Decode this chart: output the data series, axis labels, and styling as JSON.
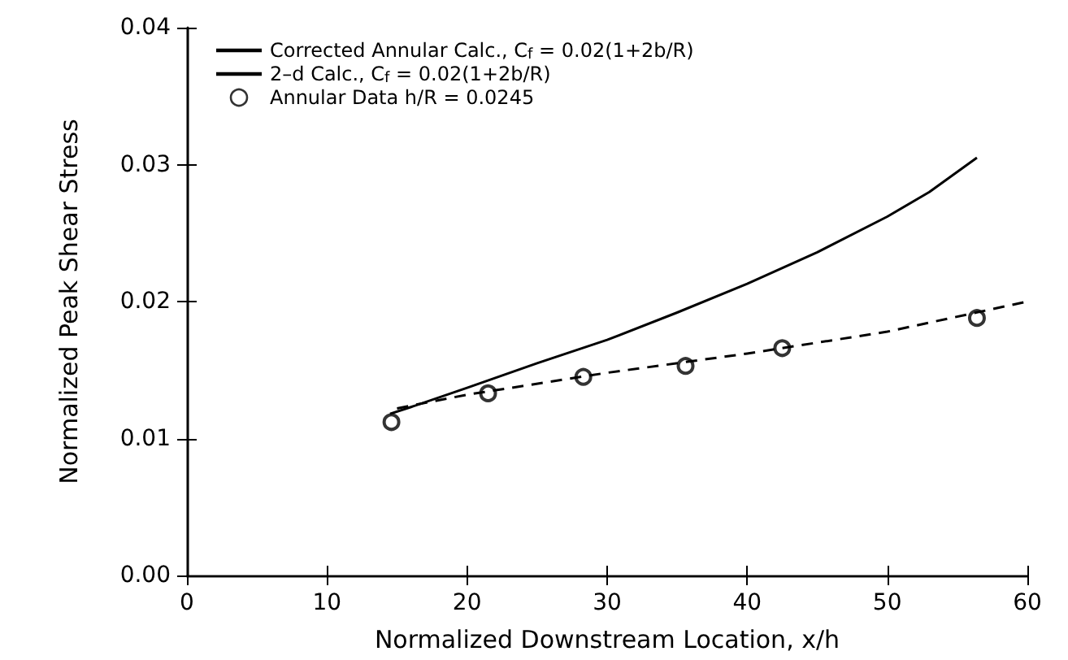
{
  "chart_data": {
    "type": "line",
    "xlabel": "Normalized Downstream Location, x/h",
    "ylabel": "Normalized Peak Shear Stress",
    "xlim": [
      0,
      60
    ],
    "xticks": [
      0,
      10,
      20,
      30,
      40,
      50,
      60
    ],
    "ylim": [
      0,
      0.04
    ],
    "yticks": [
      {
        "value": 0,
        "label": "0.00"
      },
      0.01,
      0.02,
      0.03,
      0.04
    ],
    "legend": "top left",
    "grid": false,
    "series": [
      {
        "name": "Corrected Annular Calc., C$_{f}$ = 0.02(1+2b/R)",
        "type": "line",
        "line_style": "solid",
        "color": "#000000",
        "x": [
          14.5,
          16,
          20,
          25,
          30,
          35,
          40,
          45,
          50,
          53,
          56.4
        ],
        "values": [
          0.0118,
          0.0123,
          0.0137,
          0.0155,
          0.0172,
          0.0192,
          0.0213,
          0.0236,
          0.0262,
          0.028,
          0.0305
        ]
      },
      {
        "name": "2–d Calc., C$_{f}$ = 0.02(1+2b/R)",
        "type": "line",
        "line_style": "dashed",
        "color": "#000000",
        "x": [
          15,
          20,
          30,
          40,
          50,
          60
        ],
        "values": [
          0.0122,
          0.0132,
          0.0148,
          0.0162,
          0.0178,
          0.02
        ]
      },
      {
        "name": "Annular Data h/R = 0.0245",
        "type": "scatter",
        "marker": "circle",
        "color": "#000000",
        "x": [
          14.6,
          21.5,
          28.3,
          35.6,
          42.5,
          56.4
        ],
        "values": [
          0.0112,
          0.0133,
          0.0145,
          0.0153,
          0.0166,
          0.0188
        ]
      }
    ]
  }
}
